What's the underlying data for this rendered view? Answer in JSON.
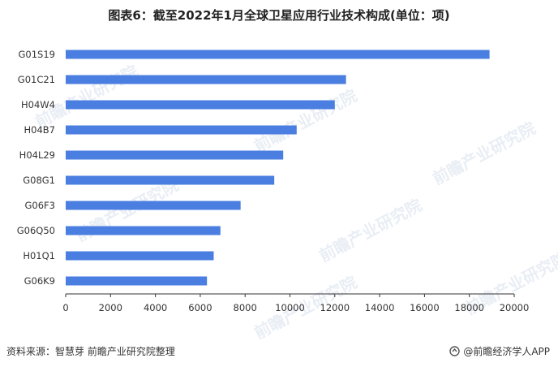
{
  "chart_title": "图表6：截至2022年1月全球卫星应用行业技术构成(单位：项)",
  "source": "资料来源：智慧芽 前瞻产业研究院整理",
  "brand": "@前瞻经济学人APP",
  "watermark": "前瞻产业研究院",
  "colors": {
    "bar": "#4A7EE0",
    "axis": "#333333",
    "text": "#333333"
  },
  "chart_data": {
    "type": "bar",
    "orientation": "horizontal",
    "categories": [
      "G01S19",
      "G01C21",
      "H04W4",
      "H04B7",
      "H04L29",
      "G08G1",
      "G06F3",
      "G06Q50",
      "H01Q1",
      "G06K9"
    ],
    "values": [
      18900,
      12500,
      12000,
      10300,
      9700,
      9300,
      7800,
      6900,
      6600,
      6300
    ],
    "xlim": [
      0,
      20000
    ],
    "xticks": [
      0,
      2000,
      4000,
      6000,
      8000,
      10000,
      12000,
      14000,
      16000,
      18000,
      20000
    ],
    "grid": false,
    "legend": "none"
  }
}
